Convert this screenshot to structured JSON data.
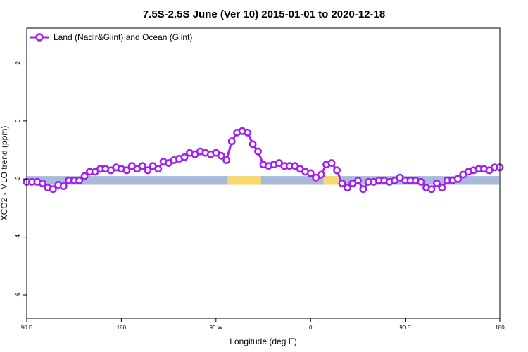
{
  "chart_data": {
    "type": "line",
    "title": "7.5S-2.5S June (Ver 10)   2015-01-01 to 2020-12-18",
    "xlabel": "Longitude (deg E)",
    "ylabel": "XCO2 - MLO trend (ppm)",
    "x_ticks": [
      {
        "value": 90,
        "label": "90 E"
      },
      {
        "value": 180,
        "label": "180"
      },
      {
        "value": 270,
        "label": "90 W"
      },
      {
        "value": 360,
        "label": "0"
      },
      {
        "value": 450,
        "label": "90 E"
      },
      {
        "value": 540,
        "label": "180"
      }
    ],
    "y_ticks": [
      {
        "value": 2,
        "label": "2"
      },
      {
        "value": 0,
        "label": "0"
      },
      {
        "value": -2,
        "label": "-2"
      },
      {
        "value": -4,
        "label": "-4"
      },
      {
        "value": -6,
        "label": "-6"
      }
    ],
    "xlim": [
      90,
      540
    ],
    "ylim": [
      -6.8,
      3.2
    ],
    "grid": false,
    "legend_position": "top-left",
    "series": [
      {
        "name": "Land (Nadir&Glint) and Ocean (Glint)",
        "color": "#a020f0",
        "x": [
          90,
          95,
          100,
          105,
          110,
          115,
          120,
          125,
          130,
          135,
          140,
          145,
          150,
          155,
          160,
          165,
          170,
          175,
          180,
          185,
          190,
          195,
          200,
          205,
          210,
          215,
          220,
          225,
          230,
          235,
          240,
          245,
          250,
          255,
          260,
          265,
          270,
          275,
          280,
          285,
          290,
          295,
          300,
          305,
          310,
          315,
          320,
          325,
          330,
          335,
          340,
          345,
          350,
          355,
          360,
          365,
          370,
          375,
          380,
          385,
          390,
          395,
          400,
          405,
          410,
          415,
          420,
          425,
          430,
          435,
          440,
          445,
          450,
          455,
          460,
          465,
          470,
          475,
          480,
          485,
          490,
          495,
          500,
          505,
          510,
          515,
          520,
          525,
          530,
          535,
          540
        ],
        "y": [
          -2.1,
          -2.1,
          -2.1,
          -2.15,
          -2.3,
          -2.35,
          -2.2,
          -2.25,
          -2.05,
          -2.05,
          -2.05,
          -1.9,
          -1.75,
          -1.75,
          -1.65,
          -1.65,
          -1.7,
          -1.6,
          -1.65,
          -1.7,
          -1.55,
          -1.65,
          -1.55,
          -1.7,
          -1.55,
          -1.65,
          -1.4,
          -1.45,
          -1.35,
          -1.3,
          -1.25,
          -1.1,
          -1.15,
          -1.05,
          -1.1,
          -1.15,
          -1.1,
          -1.2,
          -1.35,
          -0.7,
          -0.4,
          -0.35,
          -0.4,
          -0.8,
          -1.05,
          -1.5,
          -1.55,
          -1.5,
          -1.45,
          -1.55,
          -1.55,
          -1.55,
          -1.65,
          -1.75,
          -1.8,
          -1.95,
          -1.85,
          -1.5,
          -1.45,
          -1.7,
          -2.15,
          -2.3,
          -2.15,
          -2.05,
          -2.35,
          -2.1,
          -2.1,
          -2.05,
          -2.05,
          -2.1,
          -2.05,
          -1.95,
          -2.05,
          -2.05,
          -2.05,
          -2.1,
          -2.3,
          -2.35,
          -2.15,
          -2.3,
          -2.05,
          -2.05,
          -2.0,
          -1.85,
          -1.75,
          -1.7,
          -1.65,
          -1.65,
          -1.7,
          -1.6,
          -1.6
        ]
      }
    ],
    "background_band": {
      "y_range": [
        -2.2,
        -1.9
      ],
      "ocean_color": "#a8b9d9",
      "land_color": "#f9d86e",
      "land_segments": [
        [
          281,
          313
        ],
        [
          372,
          390
        ]
      ]
    }
  }
}
